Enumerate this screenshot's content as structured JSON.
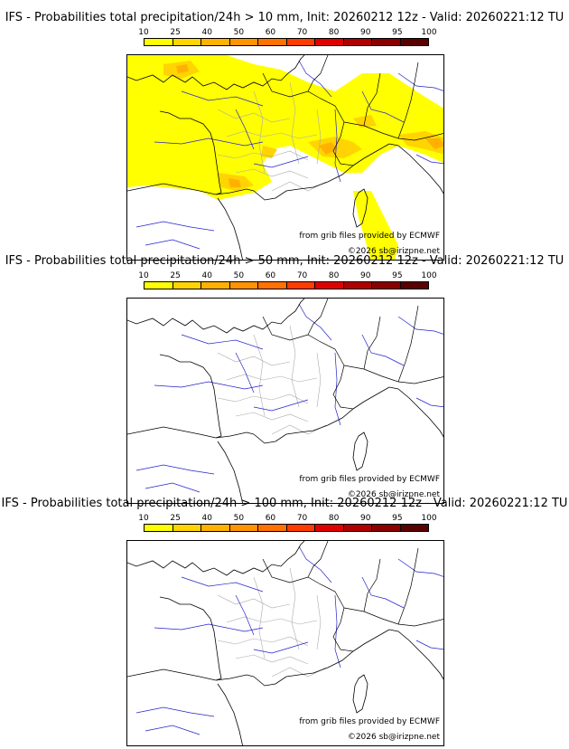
{
  "legend": {
    "ticks": [
      "10",
      "25",
      "40",
      "50",
      "60",
      "70",
      "80",
      "90",
      "95",
      "100"
    ],
    "colors": [
      "#ffff00",
      "#ffd400",
      "#ffb100",
      "#ff9400",
      "#ff7200",
      "#ff3c00",
      "#e00000",
      "#b00000",
      "#8a0000",
      "#5a0000"
    ]
  },
  "panels": [
    {
      "title": "IFS - Probabilities total precipitation/24h > 10 mm, Init: 20260212 12z - Valid: 20260221:12 TU",
      "threshold_mm": 10,
      "has_precipitation": true
    },
    {
      "title": "IFS - Probabilities total precipitation/24h > 50 mm, Init: 20260212 12z - Valid: 20260221:12 TU",
      "threshold_mm": 50,
      "has_precipitation": false
    },
    {
      "title": "IFS - Probabilities total precipitation/24h > 100 mm, Init: 20260212 12z - Valid: 20260221:12 TU",
      "threshold_mm": 100,
      "has_precipitation": false
    }
  ],
  "credits": {
    "source": "from grib files provided by ECMWF",
    "copyright": "©2026 sb@irizpne.net"
  },
  "colors": {
    "rivers": "#2222cc",
    "borders": "#000000",
    "regions": "#aaaaaa"
  }
}
